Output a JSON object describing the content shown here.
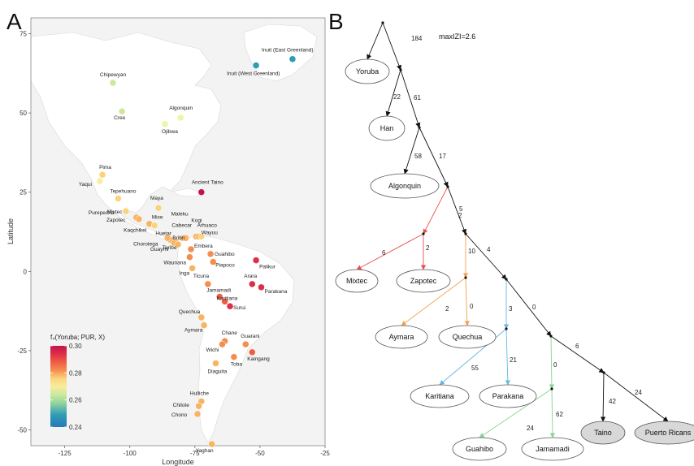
{
  "panels": {
    "a": "A",
    "b": "B"
  },
  "map": {
    "xlabel": "Longitude",
    "ylabel": "Latitude",
    "xticks": [
      -125,
      -100,
      -75,
      -50,
      -25
    ],
    "yticks": [
      75,
      50,
      25,
      0,
      -25,
      -50
    ],
    "xlim": [
      -138,
      -25
    ],
    "ylim": [
      -55,
      80
    ]
  },
  "legend": {
    "title": "f₄(Yoruba; PUR, X)",
    "min": 0.24,
    "max": 0.3,
    "ticks": [
      0.3,
      0.28,
      0.26,
      0.24
    ],
    "tick_labels": [
      "0.30",
      "0.28",
      "0.26",
      "0.24"
    ],
    "colors": [
      "#c2134d",
      "#df2e48",
      "#ef5d43",
      "#f58d4e",
      "#f9b463",
      "#fad47c",
      "#f9ec9c",
      "#eef5a4",
      "#cbe99e",
      "#96d59e",
      "#5fbcaa",
      "#2e9cb5",
      "#2978b8"
    ]
  },
  "chart_data": [
    {
      "type": "scatter",
      "xlabel": "Longitude",
      "ylabel": "Latitude",
      "xlim": [
        -138,
        -25
      ],
      "ylim": [
        -55,
        80
      ],
      "points": [
        {
          "name": "Inuit (East Greenland)",
          "lon": -37.5,
          "lat": 67,
          "value": 0.243
        },
        {
          "name": "Inuit (West Greenland)",
          "lon": -51.5,
          "lat": 65,
          "value": 0.244
        },
        {
          "name": "Chipewyan",
          "lon": -106.5,
          "lat": 59.5,
          "value": 0.259
        },
        {
          "name": "Cree",
          "lon": -103,
          "lat": 50.5,
          "value": 0.262
        },
        {
          "name": "Algonquin",
          "lon": -80.5,
          "lat": 48.5,
          "value": 0.265
        },
        {
          "name": "Ojibwa",
          "lon": -86.5,
          "lat": 46.5,
          "value": 0.267
        },
        {
          "name": "Ancient Taino",
          "lon": -72.5,
          "lat": 25,
          "value": 0.299
        },
        {
          "name": "Pima",
          "lon": -110.5,
          "lat": 30.5,
          "value": 0.273
        },
        {
          "name": "Yaqui",
          "lon": -111.5,
          "lat": 28.5,
          "value": 0.272
        },
        {
          "name": "Tepehuano",
          "lon": -104.5,
          "lat": 23,
          "value": 0.274
        },
        {
          "name": "Purepecha",
          "lon": -101.5,
          "lat": 19,
          "value": 0.274
        },
        {
          "name": "Mixtec",
          "lon": -97.5,
          "lat": 17,
          "value": 0.28
        },
        {
          "name": "Zapotec",
          "lon": -96.5,
          "lat": 16.5,
          "value": 0.279
        },
        {
          "name": "Mixe",
          "lon": -92.5,
          "lat": 15,
          "value": 0.28
        },
        {
          "name": "Maya",
          "lon": -89,
          "lat": 20,
          "value": 0.277
        },
        {
          "name": "Kaqchikel",
          "lon": -90.5,
          "lat": 14.5,
          "value": 0.277
        },
        {
          "name": "Huetar",
          "lon": -84.5,
          "lat": 10,
          "value": 0.279
        },
        {
          "name": "Chorotega",
          "lon": -85.5,
          "lat": 10.5,
          "value": 0.278
        },
        {
          "name": "Teribe",
          "lon": -82.5,
          "lat": 9.5,
          "value": 0.281
        },
        {
          "name": "Bribri",
          "lon": -83,
          "lat": 9,
          "value": 0.281
        },
        {
          "name": "Guaymi",
          "lon": -81.5,
          "lat": 8.5,
          "value": 0.282
        },
        {
          "name": "Cabecar",
          "lon": -79.5,
          "lat": 10.5,
          "value": 0.281
        },
        {
          "name": "Maleku",
          "lon": -78.5,
          "lat": 10.5,
          "value": 0.28
        },
        {
          "name": "Kogi",
          "lon": -74.5,
          "lat": 11,
          "value": 0.278
        },
        {
          "name": "Arhuaco",
          "lon": -73.5,
          "lat": 11,
          "value": 0.278
        },
        {
          "name": "Wayuu",
          "lon": -72.5,
          "lat": 11,
          "value": 0.276
        },
        {
          "name": "Embera",
          "lon": -76.5,
          "lat": 7,
          "value": 0.284
        },
        {
          "name": "Waunana",
          "lon": -77,
          "lat": 4.5,
          "value": 0.285
        },
        {
          "name": "Guahibo",
          "lon": -69,
          "lat": 5.5,
          "value": 0.286
        },
        {
          "name": "Piapoco",
          "lon": -68,
          "lat": 3,
          "value": 0.285
        },
        {
          "name": "Palikur",
          "lon": -51.5,
          "lat": 3.5,
          "value": 0.293
        },
        {
          "name": "Inga",
          "lon": -76,
          "lat": 1,
          "value": 0.281
        },
        {
          "name": "Ticuna",
          "lon": -70,
          "lat": -4,
          "value": 0.286
        },
        {
          "name": "Arara",
          "lon": -53,
          "lat": -4,
          "value": 0.297
        },
        {
          "name": "Parakana",
          "lon": -49.5,
          "lat": -5,
          "value": 0.295
        },
        {
          "name": "Jamamadi",
          "lon": -65.5,
          "lat": -8,
          "value": 0.29
        },
        {
          "name": "Karitiana",
          "lon": -63.5,
          "lat": -9.5,
          "value": 0.291
        },
        {
          "name": "Surui",
          "lon": -61.5,
          "lat": -11,
          "value": 0.293
        },
        {
          "name": "Quechua",
          "lon": -72.5,
          "lat": -14.5,
          "value": 0.279
        },
        {
          "name": "Aymara",
          "lon": -71.5,
          "lat": -17,
          "value": 0.28
        },
        {
          "name": "Chane",
          "lon": -63.5,
          "lat": -22,
          "value": 0.286
        },
        {
          "name": "Wichi",
          "lon": -64.5,
          "lat": -23,
          "value": 0.285
        },
        {
          "name": "Guarani",
          "lon": -55.5,
          "lat": -23,
          "value": 0.287
        },
        {
          "name": "Kaingang",
          "lon": -53,
          "lat": -25.5,
          "value": 0.288
        },
        {
          "name": "Toba",
          "lon": -60,
          "lat": -27,
          "value": 0.287
        },
        {
          "name": "Diaguita",
          "lon": -67,
          "lat": -29,
          "value": 0.278
        },
        {
          "name": "Hulliche",
          "lon": -72.5,
          "lat": -41,
          "value": 0.279
        },
        {
          "name": "Chilote",
          "lon": -73.5,
          "lat": -42.5,
          "value": 0.279
        },
        {
          "name": "Chono",
          "lon": -74,
          "lat": -45,
          "value": 0.28
        },
        {
          "name": "Yaghan",
          "lon": -68.5,
          "lat": -54.5,
          "value": 0.28
        }
      ]
    },
    {
      "type": "tree",
      "annotation": "maxIZI=2.6",
      "nodes": [
        {
          "id": "Yoruba",
          "label": "Yoruba"
        },
        {
          "id": "Han",
          "label": "Han"
        },
        {
          "id": "Algonquin",
          "label": "Algonquin"
        },
        {
          "id": "Mixtec",
          "label": "Mixtec"
        },
        {
          "id": "Zapotec",
          "label": "Zapotec"
        },
        {
          "id": "Aymara",
          "label": "Aymara"
        },
        {
          "id": "Quechua",
          "label": "Quechua"
        },
        {
          "id": "Karitiana",
          "label": "Karitiana"
        },
        {
          "id": "Parakana",
          "label": "Parakana"
        },
        {
          "id": "Guahibo",
          "label": "Guahibo"
        },
        {
          "id": "Jamamadi",
          "label": "Jamamadi"
        },
        {
          "id": "Taino",
          "label": "Taino",
          "highlight": true
        },
        {
          "id": "PuertoRicans",
          "label": "Puerto Ricans",
          "highlight": true
        }
      ],
      "edges": [
        {
          "from": "root",
          "to": "Yoruba",
          "label": ""
        },
        {
          "from": "root",
          "to": "n1",
          "label": "184"
        },
        {
          "from": "n1",
          "to": "Han",
          "label": "22"
        },
        {
          "from": "n1",
          "to": "n2",
          "label": "61"
        },
        {
          "from": "n2",
          "to": "Algonquin",
          "label": "58"
        },
        {
          "from": "n2",
          "to": "n3",
          "label": "17"
        },
        {
          "from": "n3",
          "to": "n4",
          "label": "",
          "color": "#e8504a"
        },
        {
          "from": "n4",
          "to": "Mixtec",
          "label": "6",
          "color": "#e8504a"
        },
        {
          "from": "n4",
          "to": "Zapotec",
          "label": "2",
          "color": "#e8504a"
        },
        {
          "from": "n3",
          "to": "n5",
          "label": "5"
        },
        {
          "from": "n5",
          "to": "n6",
          "label": "",
          "color": "#f2a24c"
        },
        {
          "from": "n6",
          "to": "Aymara",
          "label": "2",
          "color": "#f2a24c"
        },
        {
          "from": "n6",
          "to": "Quechua",
          "label": "0",
          "color": "#f2a24c"
        },
        {
          "from": "n5",
          "to": "n7",
          "label": "4"
        },
        {
          "from": "n7",
          "to": "n8",
          "label": "",
          "color": "#64b9e0"
        },
        {
          "from": "n8",
          "to": "Karitiana",
          "label": "55",
          "color": "#64b9e0"
        },
        {
          "from": "n8",
          "to": "Parakana",
          "label": "21",
          "color": "#64b9e0"
        },
        {
          "from": "n7",
          "to": "n9",
          "label": "0"
        },
        {
          "from": "n9",
          "to": "n10",
          "label": "",
          "color": "#86d48f"
        },
        {
          "from": "n10",
          "to": "Guahibo",
          "label": "24",
          "color": "#86d48f"
        },
        {
          "from": "n10",
          "to": "Jamamadi",
          "label": "62",
          "color": "#86d48f"
        },
        {
          "from": "n9",
          "to": "n11",
          "label": "6"
        },
        {
          "from": "n11",
          "to": "Taino",
          "label": "42"
        },
        {
          "from": "n11",
          "to": "PuertoRicans",
          "label": "24"
        }
      ],
      "inner_labels": [
        {
          "edge": "n3-n4",
          "label": "2"
        },
        {
          "edge": "n5-n6",
          "label": "10"
        },
        {
          "edge": "n7-n8",
          "label": "3"
        },
        {
          "edge": "n9-n10",
          "label": "0"
        }
      ]
    }
  ]
}
